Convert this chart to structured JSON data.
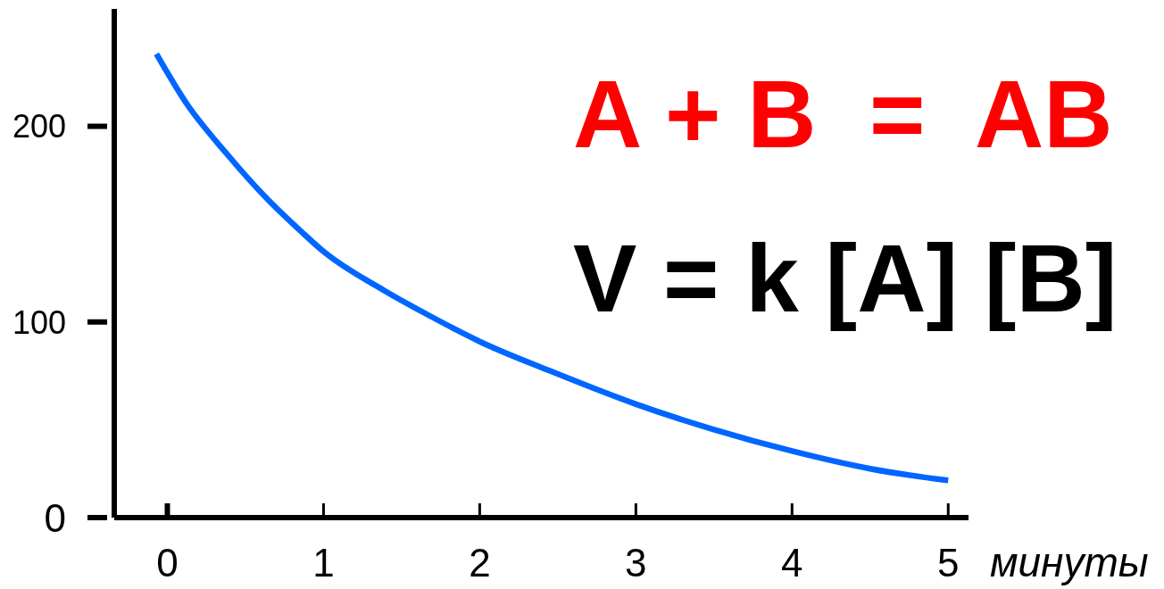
{
  "chart_data": {
    "type": "line",
    "xlabel": "минуты",
    "x": [
      -0.07,
      0.12,
      0.38,
      0.65,
      0.86,
      1,
      1.39,
      1.66,
      2,
      2.45,
      3,
      3.5,
      4,
      4.5,
      5
    ],
    "series": [
      {
        "color": "#0066ff",
        "values": [
          237,
          212,
          186,
          162,
          146,
          136,
          116,
          104,
          90,
          75,
          58,
          45,
          34,
          25,
          19
        ]
      }
    ],
    "xlim": [
      -0.34,
      5.13
    ],
    "ylim": [
      0,
      260
    ],
    "xticks": [
      0,
      1,
      2,
      3,
      4,
      5
    ],
    "yticks": [
      0,
      100,
      200
    ],
    "marker": "none",
    "line_style": "solid",
    "annotations": [
      "A + B  =  AB",
      "V = k [A] [B]"
    ]
  }
}
